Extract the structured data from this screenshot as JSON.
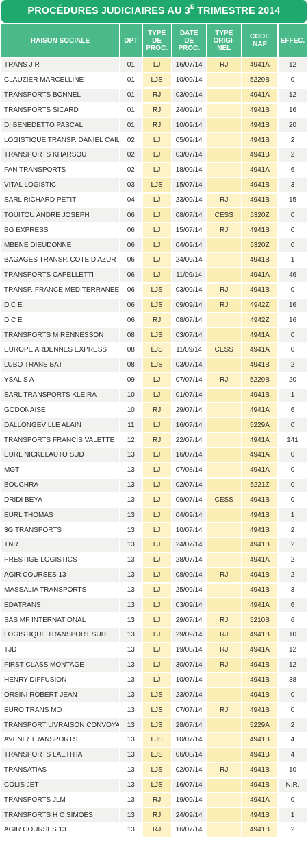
{
  "title": {
    "main": "PROCÉDURES JUDICIAIRES AU 3",
    "sup": "E",
    "rest": " TRIMESTRE 2014"
  },
  "headers": {
    "name": "RAISON SOCIALE",
    "dpt": "DPT",
    "type_lines": [
      "TYPE",
      "DE",
      "PROC."
    ],
    "date_lines": [
      "DATE",
      "DE",
      "PROC."
    ],
    "orig_lines": [
      "TYPE",
      "ORIGI-",
      "NEL"
    ],
    "naf_lines": [
      "CODE",
      "NAF"
    ],
    "effec": "EFFEC."
  },
  "rows": [
    [
      "TRANS J R",
      "01",
      "LJ",
      "16/07/14",
      "RJ",
      "4941A",
      "12"
    ],
    [
      "CLAUZIER MARCELLINE",
      "01",
      "LJS",
      "10/09/14",
      "",
      "5229B",
      "0"
    ],
    [
      "TRANSPORTS BONNEL",
      "01",
      "RJ",
      "03/09/14",
      "",
      "4941A",
      "12"
    ],
    [
      "TRANSPORTS SICARD",
      "01",
      "RJ",
      "24/09/14",
      "",
      "4941B",
      "16"
    ],
    [
      "DI BENEDETTO PASCAL",
      "01",
      "RJ",
      "10/09/14",
      "",
      "4941B",
      "20"
    ],
    [
      "LOGISTIQUE TRANSP. DANIEL CAILLE",
      "02",
      "LJ",
      "05/09/14",
      "",
      "4941B",
      "2"
    ],
    [
      "TRANSPORTS KHARSOU",
      "02",
      "LJ",
      "03/07/14",
      "",
      "4941B",
      "2"
    ],
    [
      "FAN TRANSPORTS",
      "02",
      "LJ",
      "18/09/14",
      "",
      "4941A",
      "6"
    ],
    [
      "VITAL LOGISTIC",
      "03",
      "LJS",
      "15/07/14",
      "",
      "4941B",
      "3"
    ],
    [
      "SARL RICHARD PETIT",
      "04",
      "LJ",
      "23/09/14",
      "RJ",
      "4941B",
      "15"
    ],
    [
      "TOUITOU ANDRE JOSEPH",
      "06",
      "LJ",
      "08/07/14",
      "CESS",
      "5320Z",
      "0"
    ],
    [
      "BG EXPRESS",
      "06",
      "LJ",
      "15/07/14",
      "RJ",
      "4941B",
      "0"
    ],
    [
      "MBENE DIEUDONNE",
      "06",
      "LJ",
      "04/09/14",
      "",
      "5320Z",
      "0"
    ],
    [
      "BAGAGES TRANSP. COTE D AZUR",
      "06",
      "LJ",
      "24/09/14",
      "",
      "4941B",
      "1"
    ],
    [
      "TRANSPORTS CAPELLETTI",
      "06",
      "LJ",
      "11/09/14",
      "",
      "4941A",
      "46"
    ],
    [
      "TRANSP. FRANCE MEDITERRANEE",
      "06",
      "LJS",
      "03/09/14",
      "RJ",
      "4941B",
      "0"
    ],
    [
      "D C E",
      "06",
      "LJS",
      "09/09/14",
      "RJ",
      "4942Z",
      "16"
    ],
    [
      "D C E",
      "06",
      "RJ",
      "08/07/14",
      "",
      "4942Z",
      "16"
    ],
    [
      "TRANSPORTS M RENNESSON",
      "08",
      "LJS",
      "03/07/14",
      "",
      "4941A",
      "0"
    ],
    [
      "EUROPE ARDENNES EXPRESS",
      "08",
      "LJS",
      "11/09/14",
      "CESS",
      "4941A",
      "0"
    ],
    [
      "LUBO TRANS BAT",
      "08",
      "LJS",
      "03/07/14",
      "",
      "4941B",
      "2"
    ],
    [
      "YSAL S A",
      "09",
      "LJ",
      "07/07/14",
      "RJ",
      "5229B",
      "20"
    ],
    [
      "SARL TRANSPORTS KLEIRA",
      "10",
      "LJ",
      "01/07/14",
      "",
      "4941B",
      "1"
    ],
    [
      "GODONAISE",
      "10",
      "RJ",
      "29/07/14",
      "",
      "4941A",
      "6"
    ],
    [
      "DALLONGEVILLE ALAIN",
      "11",
      "LJ",
      "16/07/14",
      "",
      "5229A",
      "0"
    ],
    [
      "TRANSPORTS FRANCIS VALETTE",
      "12",
      "RJ",
      "22/07/14",
      "",
      "4941A",
      "141"
    ],
    [
      "EURL NICKELAUTO SUD",
      "13",
      "LJ",
      "16/07/14",
      "",
      "4941A",
      "0"
    ],
    [
      "MGT",
      "13",
      "LJ",
      "07/08/14",
      "",
      "4941A",
      "0"
    ],
    [
      "BOUCHRA",
      "13",
      "LJ",
      "02/07/14",
      "",
      "5221Z",
      "0"
    ],
    [
      "DRIDI BEYA",
      "13",
      "LJ",
      "09/07/14",
      "CESS",
      "4941B",
      "0"
    ],
    [
      "EURL THOMAS",
      "13",
      "LJ",
      "04/09/14",
      "",
      "4941B",
      "1"
    ],
    [
      "3G TRANSPORTS",
      "13",
      "LJ",
      "10/07/14",
      "",
      "4941B",
      "2"
    ],
    [
      "TNR",
      "13",
      "LJ",
      "24/07/14",
      "",
      "4941B",
      "2"
    ],
    [
      "PRESTIGE LOGISTICS",
      "13",
      "LJ",
      "28/07/14",
      "",
      "4941A",
      "2"
    ],
    [
      "AGIR COURSES 13",
      "13",
      "LJ",
      "08/09/14",
      "RJ",
      "4941B",
      "2"
    ],
    [
      "MASSALIA TRANSPORTS",
      "13",
      "LJ",
      "25/09/14",
      "",
      "4941B",
      "3"
    ],
    [
      "EDATRANS",
      "13",
      "LJ",
      "03/09/14",
      "",
      "4941A",
      "6"
    ],
    [
      "SAS MF INTERNATIONAL",
      "13",
      "LJ",
      "29/07/14",
      "RJ",
      "5210B",
      "6"
    ],
    [
      "LOGISTIQUE TRANSPORT SUD",
      "13",
      "LJ",
      "29/09/14",
      "RJ",
      "4941B",
      "10"
    ],
    [
      "TJD",
      "13",
      "LJ",
      "19/08/14",
      "RJ",
      "4941A",
      "12"
    ],
    [
      "FIRST CLASS MONTAGE",
      "13",
      "LJ",
      "30/07/14",
      "RJ",
      "4941B",
      "12"
    ],
    [
      "HENRY DIFFUSION",
      "13",
      "LJ",
      "10/07/14",
      "",
      "4941B",
      "38"
    ],
    [
      "ORSINI ROBERT JEAN",
      "13",
      "LJS",
      "23/07/14",
      "",
      "4941B",
      "0"
    ],
    [
      "EURO TRANS MO",
      "13",
      "LJS",
      "07/07/14",
      "RJ",
      "4941B",
      "0"
    ],
    [
      "TRANSPORT LIVRAISON CONVOYAGE",
      "13",
      "LJS",
      "28/07/14",
      "",
      "5229A",
      "2"
    ],
    [
      "AVENIR TRANSPORTS",
      "13",
      "LJS",
      "10/07/14",
      "",
      "4941B",
      "4"
    ],
    [
      "TRANSPORTS LAETITIA",
      "13",
      "LJS",
      "06/08/14",
      "",
      "4941B",
      "4"
    ],
    [
      "TRANSATIAS",
      "13",
      "LJS",
      "02/07/14",
      "RJ",
      "4941B",
      "10"
    ],
    [
      "COLIS JET",
      "13",
      "LJS",
      "16/07/14",
      "",
      "4941B",
      "N.R."
    ],
    [
      "TRANSPORTS JLM",
      "13",
      "RJ",
      "19/09/14",
      "",
      "4941A",
      "0"
    ],
    [
      "TRANSPORTS H C SIMOES",
      "13",
      "RJ",
      "24/09/14",
      "",
      "4941B",
      "1"
    ],
    [
      "AGIR COURSES 13",
      "13",
      "RJ",
      "16/07/14",
      "",
      "4941B",
      "2"
    ]
  ],
  "colors": {
    "title_bg": "#1fa96f",
    "header_bg": "#4bb98a",
    "highlight_col": "#fbeeb4",
    "row_alt": "#f1f1ef"
  }
}
